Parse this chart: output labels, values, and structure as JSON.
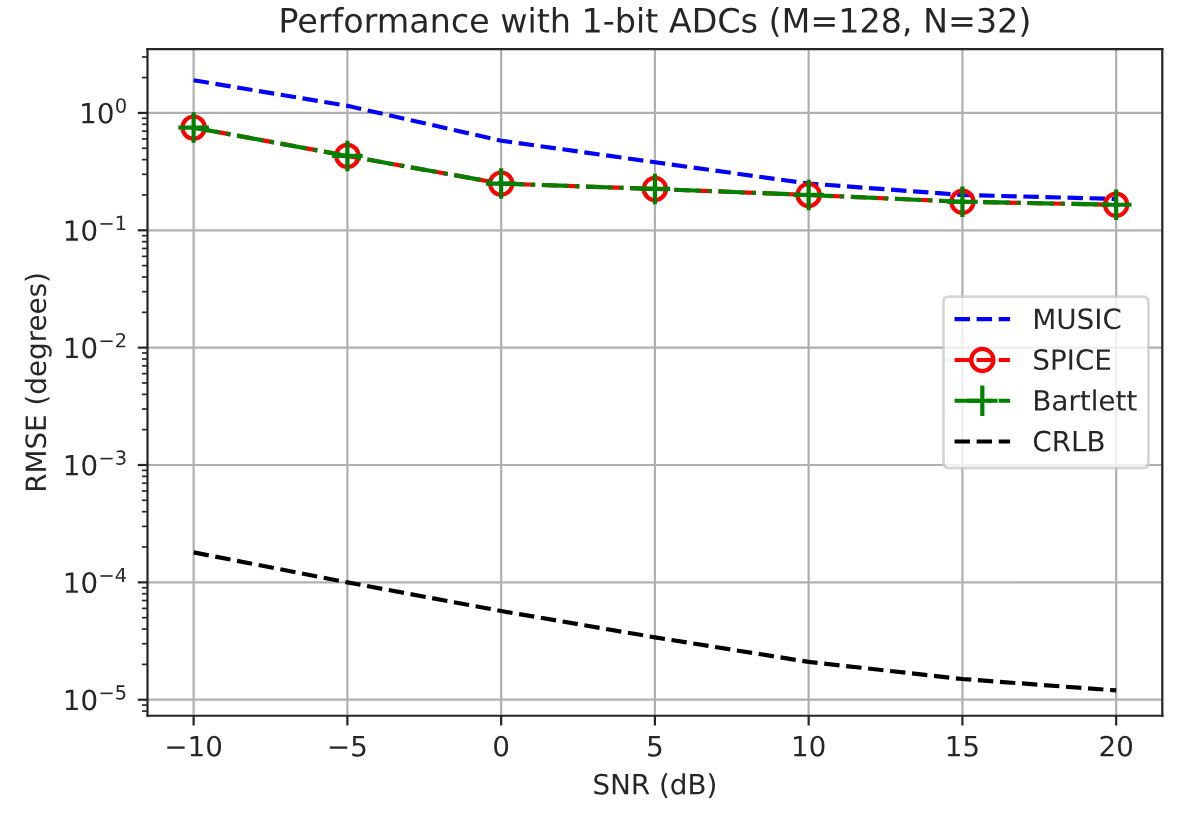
{
  "chart_data": {
    "type": "line",
    "title": "Performance with 1-bit ADCs (M=128, N=32)",
    "xlabel": "SNR (dB)",
    "ylabel": "RMSE (degrees)",
    "x": [
      -10,
      -5,
      0,
      5,
      10,
      15,
      20
    ],
    "series": [
      {
        "name": "MUSIC",
        "color": "#0000ff",
        "line_style": "dashed",
        "marker": "none",
        "values": [
          1.9,
          1.15,
          0.58,
          0.38,
          0.25,
          0.2,
          0.185
        ]
      },
      {
        "name": "SPICE",
        "color": "#ff0000",
        "line_style": "dashed",
        "marker": "circle",
        "values": [
          0.75,
          0.43,
          0.25,
          0.225,
          0.2,
          0.175,
          0.165
        ]
      },
      {
        "name": "Bartlett",
        "color": "#008000",
        "line_style": "dashdot",
        "marker": "cross",
        "values": [
          0.75,
          0.43,
          0.25,
          0.225,
          0.2,
          0.175,
          0.165
        ]
      },
      {
        "name": "CRLB",
        "color": "#000000",
        "line_style": "dashed",
        "marker": "none",
        "values": [
          0.00018,
          0.0001,
          5.7e-05,
          3.4e-05,
          2.1e-05,
          1.5e-05,
          1.2e-05
        ]
      }
    ],
    "log": "y",
    "xlim": [
      -11.5,
      21.5
    ],
    "ylim": [
      7.3e-06,
      3.5
    ],
    "xticks": [
      -10,
      -5,
      0,
      5,
      10,
      15,
      20
    ],
    "yticks": [
      {
        "value": 1e-05,
        "label": "10$^{−5}$"
      },
      {
        "value": 0.0001,
        "label": "10$^{−4}$"
      },
      {
        "value": 0.001,
        "label": "10$^{−3}$"
      },
      {
        "value": 0.01,
        "label": "10$^{−2}$"
      },
      {
        "value": 0.1,
        "label": "10$^{−1}$"
      },
      {
        "value": 1,
        "label": "10$^{0}$"
      }
    ],
    "grid": true,
    "legend": "right"
  }
}
